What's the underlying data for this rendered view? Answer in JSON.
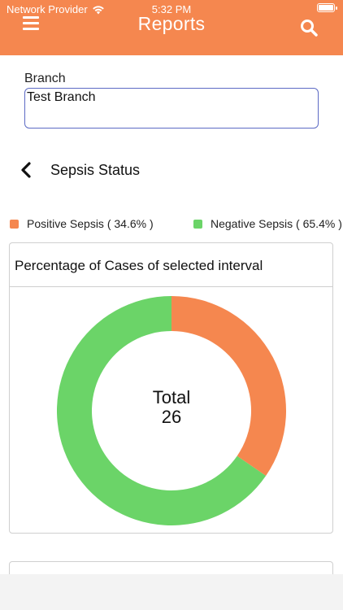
{
  "status_bar": {
    "carrier": "Network Provider",
    "time": "5:32 PM"
  },
  "header": {
    "title": "Reports",
    "background_color": "#F5874F",
    "menu_icon": "hamburger-menu-icon",
    "search_icon": "search-icon"
  },
  "branch": {
    "label": "Branch",
    "value": "Test Branch"
  },
  "section": {
    "back_icon": "chevron-left-icon",
    "title": "Sepsis Status"
  },
  "legend": [
    {
      "label": "Positive Sepsis ( 34.6% )",
      "color": "#F5874F"
    },
    {
      "label": "Negative Sepsis ( 65.4% )",
      "color": "#6BD468"
    }
  ],
  "card": {
    "title": "Percentage of Cases of selected interval"
  },
  "chart_data": {
    "type": "pie",
    "subtype": "donut",
    "title": "Percentage of Cases of selected interval",
    "center_label": "Total",
    "center_value": "26",
    "slices": [
      {
        "name": "Positive Sepsis",
        "percent": 34.6,
        "color": "#F5874F"
      },
      {
        "name": "Negative Sepsis",
        "percent": 65.4,
        "color": "#6BD468"
      }
    ]
  }
}
